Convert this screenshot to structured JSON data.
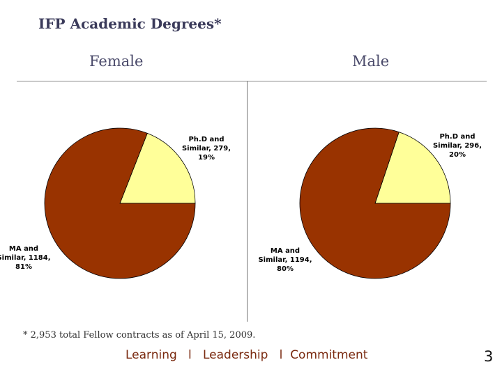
{
  "slide": {
    "title": "IFP Academic Degrees*",
    "footnote": "* 2,953 total Fellow contracts as of April 15, 2009.",
    "tagline": [
      "Learning",
      "l",
      "Leadership",
      "l",
      "Commitment"
    ],
    "page_number": "3"
  },
  "colors": {
    "ma_slice": "#993300",
    "phd_slice": "#ffff99"
  },
  "chart_data": [
    {
      "type": "pie",
      "title": "Female",
      "slices": [
        {
          "label_lines": [
            "Ph.D and",
            "Similar, 279,",
            "19%"
          ],
          "value": 279,
          "percent": 19,
          "color": "#ffff99"
        },
        {
          "label_lines": [
            "MA and",
            "Similar, 1184,",
            "81%"
          ],
          "value": 1184,
          "percent": 81,
          "color": "#993300"
        }
      ]
    },
    {
      "type": "pie",
      "title": "Male",
      "slices": [
        {
          "label_lines": [
            "Ph.D and",
            "Similar, 296,",
            "20%"
          ],
          "value": 296,
          "percent": 20,
          "color": "#ffff99"
        },
        {
          "label_lines": [
            "MA and",
            "Similar, 1194,",
            "80%"
          ],
          "value": 1194,
          "percent": 80,
          "color": "#993300"
        }
      ]
    }
  ]
}
